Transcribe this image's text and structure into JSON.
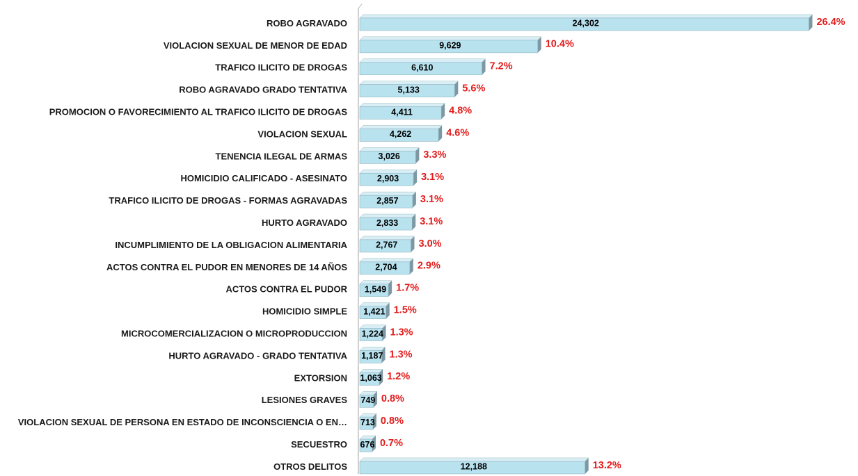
{
  "chart_data": {
    "type": "bar",
    "orientation": "horizontal",
    "categories": [
      "ROBO AGRAVADO",
      "VIOLACION SEXUAL DE MENOR DE EDAD",
      "TRAFICO ILICITO DE DROGAS",
      "ROBO AGRAVADO GRADO TENTATIVA",
      "PROMOCION O FAVORECIMIENTO AL TRAFICO ILICITO DE DROGAS",
      "VIOLACION SEXUAL",
      "TENENCIA ILEGAL DE ARMAS",
      "HOMICIDIO CALIFICADO - ASESINATO",
      "TRAFICO ILICITO DE DROGAS - FORMAS AGRAVADAS",
      "HURTO AGRAVADO",
      "INCUMPLIMIENTO DE LA OBLIGACION ALIMENTARIA",
      "ACTOS CONTRA EL PUDOR EN MENORES DE 14 AÑOS",
      "ACTOS CONTRA EL PUDOR",
      "HOMICIDIO SIMPLE",
      "MICROCOMERCIALIZACION O MICROPRODUCCION",
      "HURTO AGRAVADO - GRADO TENTATIVA",
      "EXTORSION",
      "LESIONES GRAVES",
      "VIOLACION SEXUAL DE PERSONA EN ESTADO DE INCONSCIENCIA O EN…",
      "SECUESTRO",
      "OTROS DELITOS"
    ],
    "values": [
      24302,
      9629,
      6610,
      5133,
      4411,
      4262,
      3026,
      2903,
      2857,
      2833,
      2767,
      2704,
      1549,
      1421,
      1224,
      1187,
      1063,
      749,
      713,
      676,
      12188
    ],
    "value_labels": [
      "24,302",
      "9,629",
      "6,610",
      "5,133",
      "4,411",
      "4,262",
      "3,026",
      "2,903",
      "2,857",
      "2,833",
      "2,767",
      "2,704",
      "1,549",
      "1,421",
      "1,224",
      "1,187",
      "1,063",
      "749",
      "713",
      "676",
      "12,188"
    ],
    "percent_labels": [
      "26.4%",
      "10.4%",
      "7.2%",
      "5.6%",
      "4.8%",
      "4.6%",
      "3.3%",
      "3.1%",
      "3.1%",
      "3.1%",
      "3.0%",
      "2.9%",
      "1.7%",
      "1.5%",
      "1.3%",
      "1.3%",
      "1.2%",
      "0.8%",
      "0.8%",
      "0.7%",
      "13.2%"
    ],
    "color": "#b9e2ef",
    "xlim": [
      0,
      25000
    ]
  }
}
